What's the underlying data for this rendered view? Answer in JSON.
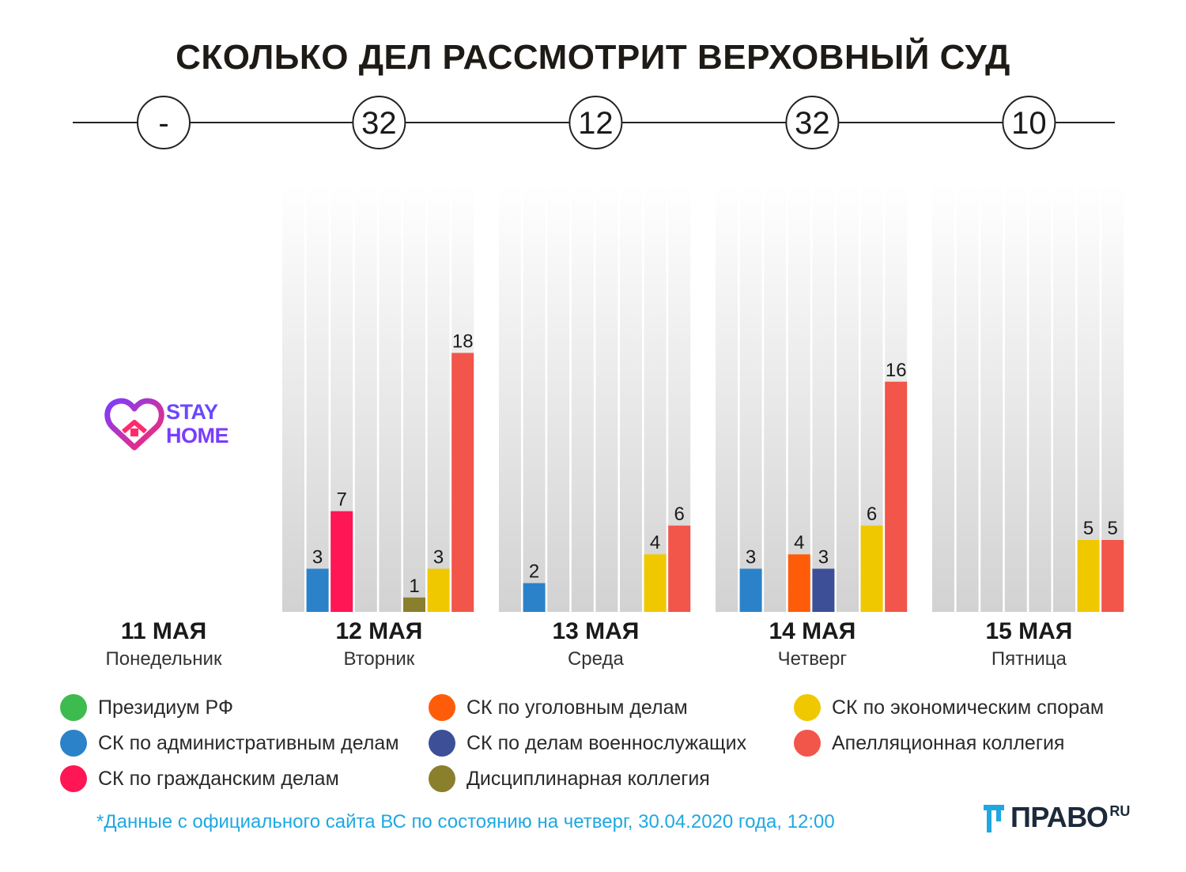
{
  "chart_data": {
    "type": "bar",
    "title": "СКОЛЬКО ДЕЛ РАССМОТРИТ ВЕРХОВНЫЙ СУД",
    "ylim": [
      0,
      30
    ],
    "days": [
      {
        "date": "11 МАЯ",
        "weekday": "Понедельник",
        "total": "-",
        "values": null
      },
      {
        "date": "12 МАЯ",
        "weekday": "Вторник",
        "total": "32",
        "values": [
          0,
          3,
          7,
          0,
          0,
          1,
          3,
          18
        ]
      },
      {
        "date": "13 МАЯ",
        "weekday": "Среда",
        "total": "12",
        "values": [
          0,
          2,
          0,
          0,
          0,
          0,
          4,
          6
        ]
      },
      {
        "date": "14 МАЯ",
        "weekday": "Четверг",
        "total": "32",
        "values": [
          0,
          3,
          0,
          4,
          3,
          0,
          6,
          16
        ]
      },
      {
        "date": "15 МАЯ",
        "weekday": "Пятница",
        "total": "10",
        "values": [
          0,
          0,
          0,
          0,
          0,
          0,
          5,
          5
        ]
      }
    ],
    "series": [
      {
        "name": "Президиум РФ",
        "color": "#3dbb4f"
      },
      {
        "name": "СК по административным делам",
        "color": "#2b82c9"
      },
      {
        "name": "СК по гражданским делам",
        "color": "#ff1654"
      },
      {
        "name": "СК по уголовным делам",
        "color": "#ff5c0a"
      },
      {
        "name": "СК по делам военнослужащих",
        "color": "#3d4f96"
      },
      {
        "name": "Дисциплинарная коллегия",
        "color": "#8a7f2c"
      },
      {
        "name": "СК по экономическим спорам",
        "color": "#f0c800"
      },
      {
        "name": "Апелляционная коллегия",
        "color": "#f2554a"
      }
    ]
  },
  "stay_home": {
    "line1": "STAY",
    "line2": "HOME"
  },
  "footnote": "*Данные с официального сайта ВС по состоянию на четверг, 30.04.2020 года, 12:00",
  "logo": {
    "word": "ПРАВО",
    "suffix": "RU"
  },
  "colors": {
    "title": "#1e1a16",
    "footnote": "#1fa8e0",
    "logo": "#1c2a3a"
  }
}
